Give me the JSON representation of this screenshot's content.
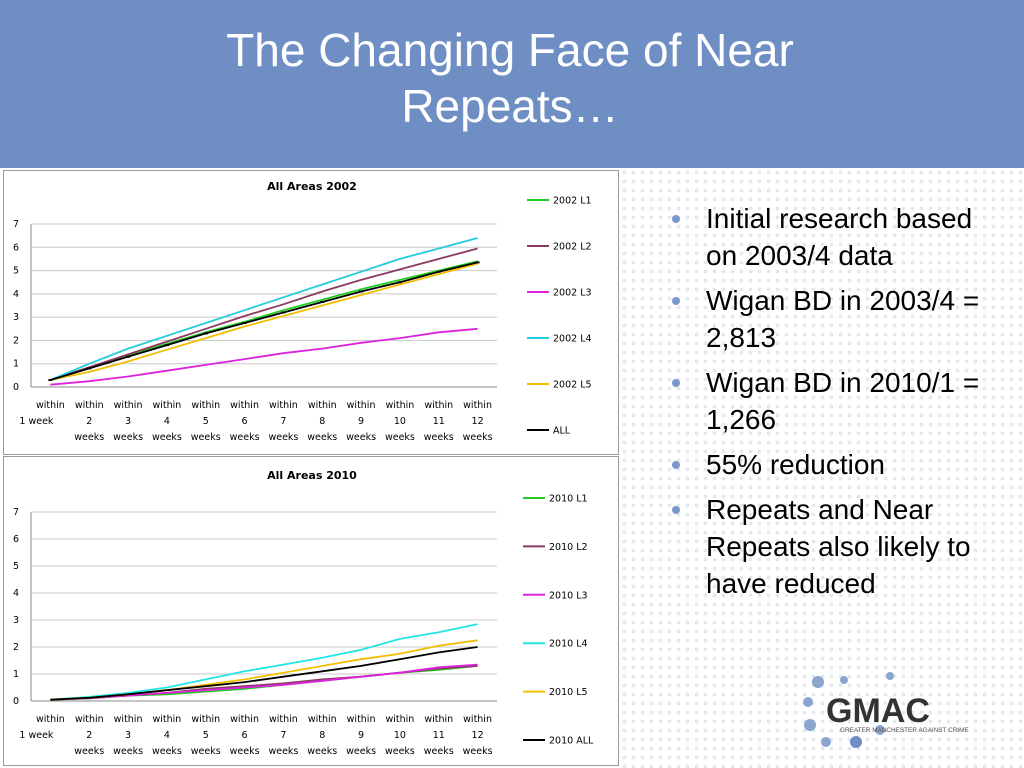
{
  "slide": {
    "title_line1": "The Changing Face of Near",
    "title_line2": "Repeats…",
    "header_color": "#6f8fc4",
    "bullet_color": "#7a98cc",
    "bullets": [
      "Initial research based on 2003/4 data",
      "Wigan BD in 2003/4 = 2,813",
      "Wigan BD in 2010/1 = 1,266",
      "55% reduction",
      "Repeats and Near Repeats also likely to have reduced"
    ],
    "logo": {
      "name": "GMAC",
      "tagline": "GREATER MANCHESTER AGAINST CRIME",
      "icon": "dotted-circle-logo"
    }
  },
  "chart_data": [
    {
      "type": "line",
      "title": "All Areas 2002",
      "categories": [
        [
          "within",
          "1 week"
        ],
        [
          "within",
          "2",
          "weeks"
        ],
        [
          "within",
          "3",
          "weeks"
        ],
        [
          "within",
          "4",
          "weeks"
        ],
        [
          "within",
          "5",
          "weeks"
        ],
        [
          "within",
          "6",
          "weeks"
        ],
        [
          "within",
          "7",
          "weeks"
        ],
        [
          "within",
          "8",
          "weeks"
        ],
        [
          "within",
          "9",
          "weeks"
        ],
        [
          "within",
          "10",
          "weeks"
        ],
        [
          "within",
          "11",
          "weeks"
        ],
        [
          "within",
          "12",
          "weeks"
        ]
      ],
      "ylim": [
        0,
        7
      ],
      "yticks": [
        0,
        1,
        2,
        3,
        4,
        5,
        6,
        7
      ],
      "grid": true,
      "legend_position": "right",
      "series": [
        {
          "name": "2002 L1",
          "color": "#22cc22",
          "marker": false,
          "values": [
            0.3,
            0.85,
            1.35,
            1.85,
            2.35,
            2.8,
            3.3,
            3.75,
            4.2,
            4.6,
            5.0,
            5.4
          ]
        },
        {
          "name": "2002 L2",
          "color": "#8b3a62",
          "marker": false,
          "values": [
            0.3,
            0.85,
            1.4,
            1.95,
            2.5,
            3.05,
            3.55,
            4.1,
            4.6,
            5.05,
            5.5,
            5.95
          ]
        },
        {
          "name": "2002 L3",
          "color": "#dd22dd",
          "marker": false,
          "values": [
            0.1,
            0.25,
            0.45,
            0.7,
            0.95,
            1.2,
            1.45,
            1.65,
            1.9,
            2.1,
            2.35,
            2.5
          ]
        },
        {
          "name": "2002 L4",
          "color": "#22ccdd",
          "marker": false,
          "values": [
            0.3,
            1.0,
            1.65,
            2.2,
            2.75,
            3.3,
            3.85,
            4.4,
            4.95,
            5.5,
            5.95,
            6.4
          ]
        },
        {
          "name": "2002 L5",
          "color": "#f2bf00",
          "marker": false,
          "values": [
            0.3,
            0.65,
            1.1,
            1.6,
            2.1,
            2.6,
            3.05,
            3.5,
            3.95,
            4.4,
            4.85,
            5.3
          ]
        },
        {
          "name": "ALL",
          "color": "#000000",
          "marker": true,
          "values": [
            0.3,
            0.8,
            1.3,
            1.8,
            2.3,
            2.75,
            3.2,
            3.65,
            4.1,
            4.5,
            4.95,
            5.35
          ]
        }
      ]
    },
    {
      "type": "line",
      "title": "All Areas 2010",
      "categories": [
        [
          "within",
          "1 week"
        ],
        [
          "within",
          "2",
          "weeks"
        ],
        [
          "within",
          "3",
          "weeks"
        ],
        [
          "within",
          "4",
          "weeks"
        ],
        [
          "within",
          "5",
          "weeks"
        ],
        [
          "within",
          "6",
          "weeks"
        ],
        [
          "within",
          "7",
          "weeks"
        ],
        [
          "within",
          "8",
          "weeks"
        ],
        [
          "within",
          "9",
          "weeks"
        ],
        [
          "within",
          "10",
          "weeks"
        ],
        [
          "within",
          "11",
          "weeks"
        ],
        [
          "within",
          "12",
          "weeks"
        ]
      ],
      "ylim": [
        0,
        7
      ],
      "yticks": [
        0,
        1,
        2,
        3,
        4,
        5,
        6,
        7
      ],
      "grid": true,
      "legend_position": "right",
      "series": [
        {
          "name": "2010 L1",
          "color": "#22cc22",
          "marker": false,
          "values": [
            0.05,
            0.1,
            0.2,
            0.25,
            0.35,
            0.45,
            0.6,
            0.75,
            0.9,
            1.05,
            1.15,
            1.3
          ]
        },
        {
          "name": "2010 L2",
          "color": "#8b3a62",
          "marker": false,
          "values": [
            0.05,
            0.12,
            0.2,
            0.3,
            0.45,
            0.55,
            0.65,
            0.8,
            0.9,
            1.05,
            1.2,
            1.3
          ]
        },
        {
          "name": "2010 L3",
          "color": "#dd22dd",
          "marker": false,
          "values": [
            0.05,
            0.1,
            0.2,
            0.3,
            0.4,
            0.5,
            0.6,
            0.75,
            0.9,
            1.05,
            1.25,
            1.35
          ]
        },
        {
          "name": "2010 L4",
          "color": "#22e5e5",
          "marker": false,
          "values": [
            0.05,
            0.15,
            0.3,
            0.5,
            0.8,
            1.1,
            1.35,
            1.6,
            1.9,
            2.3,
            2.55,
            2.85
          ]
        },
        {
          "name": "2010 L5",
          "color": "#f2bf00",
          "marker": false,
          "values": [
            0.05,
            0.12,
            0.25,
            0.4,
            0.6,
            0.8,
            1.05,
            1.3,
            1.55,
            1.75,
            2.05,
            2.25
          ]
        },
        {
          "name": "2010 ALL",
          "color": "#000000",
          "marker": false,
          "values": [
            0.05,
            0.12,
            0.25,
            0.4,
            0.55,
            0.7,
            0.9,
            1.1,
            1.3,
            1.55,
            1.8,
            2.0
          ]
        }
      ]
    }
  ]
}
